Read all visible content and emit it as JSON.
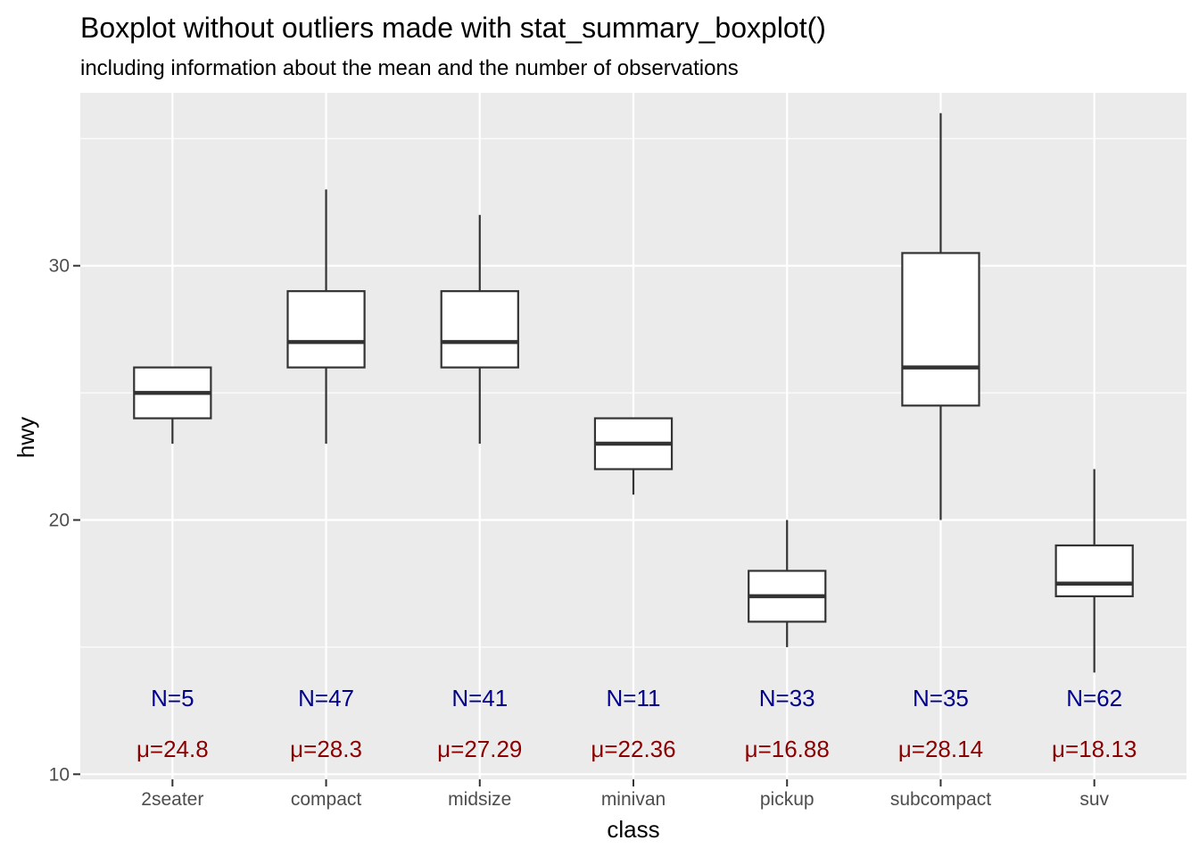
{
  "chart_data": {
    "type": "boxplot",
    "title": "Boxplot without outliers made with stat_summary_boxplot()",
    "subtitle": "including information about the mean and the number of observations",
    "xlabel": "class",
    "ylabel": "hwy",
    "ylim": [
      9.8,
      36.8
    ],
    "yticks": [
      10,
      20,
      30
    ],
    "grid": true,
    "categories": [
      "2seater",
      "compact",
      "midsize",
      "minivan",
      "pickup",
      "subcompact",
      "suv"
    ],
    "boxes": [
      {
        "category": "2seater",
        "lower_whisker": 23,
        "q1": 24,
        "median": 25,
        "q3": 26,
        "upper_whisker": 26,
        "n": "N=5",
        "mean": "μ=24.8"
      },
      {
        "category": "compact",
        "lower_whisker": 23,
        "q1": 26,
        "median": 27,
        "q3": 29,
        "upper_whisker": 33,
        "n": "N=47",
        "mean": "μ=28.3"
      },
      {
        "category": "midsize",
        "lower_whisker": 23,
        "q1": 26,
        "median": 27,
        "q3": 29,
        "upper_whisker": 32,
        "n": "N=41",
        "mean": "μ=27.29"
      },
      {
        "category": "minivan",
        "lower_whisker": 21,
        "q1": 22,
        "median": 23,
        "q3": 24,
        "upper_whisker": 24,
        "n": "N=11",
        "mean": "μ=22.36"
      },
      {
        "category": "pickup",
        "lower_whisker": 15,
        "q1": 16,
        "median": 17,
        "q3": 18,
        "upper_whisker": 20,
        "n": "N=33",
        "mean": "μ=16.88"
      },
      {
        "category": "subcompact",
        "lower_whisker": 20,
        "q1": 24.5,
        "median": 26,
        "q3": 30.5,
        "upper_whisker": 36,
        "n": "N=35",
        "mean": "μ=28.14"
      },
      {
        "category": "suv",
        "lower_whisker": 14,
        "q1": 17,
        "median": 17.5,
        "q3": 19,
        "upper_whisker": 22,
        "n": "N=62",
        "mean": "μ=18.13"
      }
    ],
    "n_label_y": 13,
    "mean_label_y": 11,
    "colors": {
      "panel": "#ebebeb",
      "grid": "#ffffff",
      "box_line": "#333333",
      "box_fill": "#ffffff",
      "n_label": "#00008b",
      "mean_label": "#8b0000"
    }
  }
}
